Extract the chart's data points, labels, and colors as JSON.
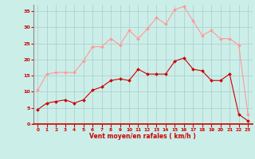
{
  "x": [
    0,
    1,
    2,
    3,
    4,
    5,
    6,
    7,
    8,
    9,
    10,
    11,
    12,
    13,
    14,
    15,
    16,
    17,
    18,
    19,
    20,
    21,
    22,
    23
  ],
  "mean_wind": [
    4.5,
    6.5,
    7.0,
    7.5,
    6.5,
    7.5,
    10.5,
    11.5,
    13.5,
    14.0,
    13.5,
    17.0,
    15.5,
    15.5,
    15.5,
    19.5,
    20.5,
    17.0,
    16.5,
    13.5,
    13.5,
    15.5,
    3.0,
    1.0
  ],
  "gust_wind": [
    10.5,
    15.5,
    16.0,
    16.0,
    16.0,
    19.5,
    24.0,
    24.0,
    26.5,
    24.5,
    29.0,
    26.5,
    29.5,
    33.0,
    31.0,
    35.5,
    36.5,
    32.0,
    27.5,
    29.0,
    26.5,
    26.5,
    24.5,
    3.0
  ],
  "mean_color": "#cc0000",
  "gust_color": "#ff9999",
  "bg_color": "#cceee8",
  "grid_color": "#aacccc",
  "xlabel": "Vent moyen/en rafales ( km/h )",
  "xlabel_color": "#cc0000",
  "tick_color": "#cc0000",
  "spine_color": "#888888",
  "bottom_spine_color": "#cc0000",
  "ylim": [
    0,
    37
  ],
  "yticks": [
    0,
    5,
    10,
    15,
    20,
    25,
    30,
    35
  ],
  "xlim": [
    -0.5,
    23.5
  ]
}
